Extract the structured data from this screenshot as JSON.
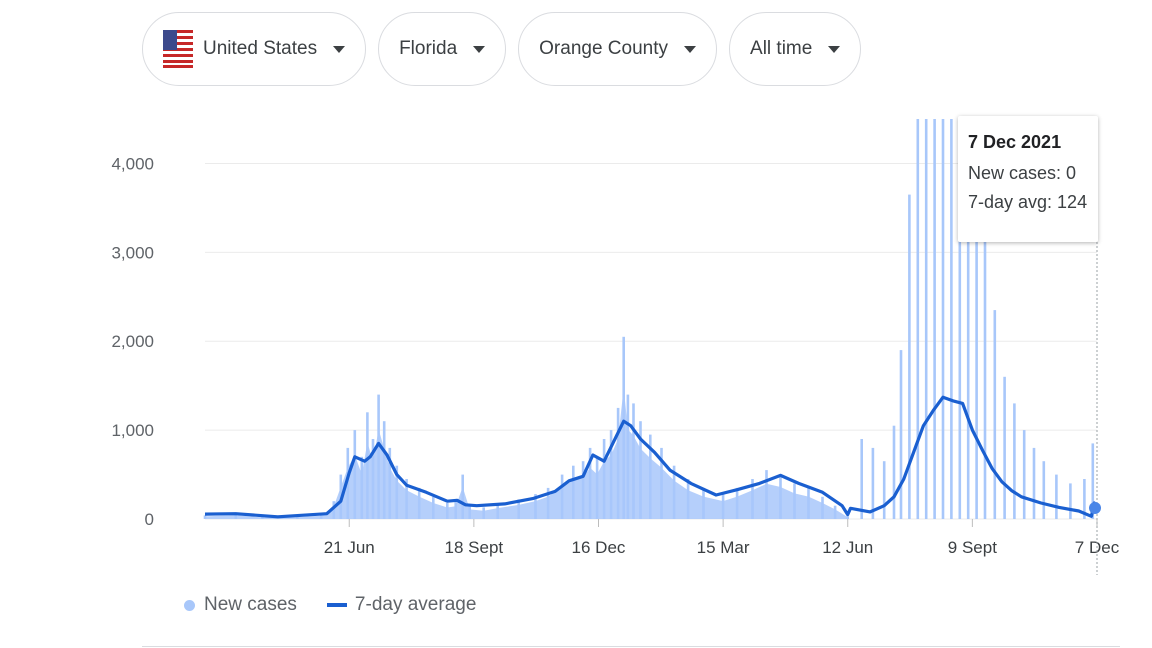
{
  "filters": {
    "country": "United States",
    "state": "Florida",
    "county": "Orange County",
    "range": "All time"
  },
  "tooltip": {
    "date": "7 Dec 2021",
    "new_cases": "New cases: 0",
    "avg": "7-day avg: 124"
  },
  "legend": {
    "new_cases": "New cases",
    "avg": "7-day average"
  },
  "colors": {
    "bars": "#a8c7fa",
    "line": "#1a5fd0",
    "grid": "#ebebeb"
  },
  "chart_data": {
    "type": "bar",
    "title": "",
    "xlabel": "",
    "ylabel": "",
    "ylim": [
      0,
      4500
    ],
    "yticks": [
      0,
      1000,
      2000,
      3000,
      4000
    ],
    "ytick_labels": [
      "0",
      "1,000",
      "2,000",
      "3,000",
      "4,000"
    ],
    "xtick_labels": [
      "21 Jun",
      "18 Sept",
      "16 Dec",
      "15 Mar",
      "12 Jun",
      "9 Sept",
      "7 Dec"
    ],
    "xtick_dates": [
      "2020-06-21",
      "2020-09-18",
      "2020-12-16",
      "2021-03-15",
      "2021-06-12",
      "2021-09-09",
      "2021-12-07"
    ],
    "x_start": "2020-03-10",
    "x_end": "2021-12-07",
    "grid": true,
    "legend_position": "bottom-left",
    "series": [
      {
        "name": "New cases",
        "type": "bar",
        "points": [
          [
            "2020-03-10",
            40
          ],
          [
            "2020-04-01",
            60
          ],
          [
            "2020-04-20",
            25
          ],
          [
            "2020-05-15",
            30
          ],
          [
            "2020-06-01",
            50
          ],
          [
            "2020-06-10",
            200
          ],
          [
            "2020-06-15",
            500
          ],
          [
            "2020-06-20",
            800
          ],
          [
            "2020-06-25",
            1000
          ],
          [
            "2020-06-30",
            700
          ],
          [
            "2020-07-04",
            1200
          ],
          [
            "2020-07-08",
            900
          ],
          [
            "2020-07-12",
            1400
          ],
          [
            "2020-07-16",
            1100
          ],
          [
            "2020-07-20",
            800
          ],
          [
            "2020-07-25",
            600
          ],
          [
            "2020-08-01",
            450
          ],
          [
            "2020-08-10",
            350
          ],
          [
            "2020-08-20",
            250
          ],
          [
            "2020-08-30",
            180
          ],
          [
            "2020-09-05",
            200
          ],
          [
            "2020-09-10",
            500
          ],
          [
            "2020-09-15",
            150
          ],
          [
            "2020-09-25",
            130
          ],
          [
            "2020-10-05",
            170
          ],
          [
            "2020-10-20",
            220
          ],
          [
            "2020-11-01",
            280
          ],
          [
            "2020-11-10",
            350
          ],
          [
            "2020-11-20",
            500
          ],
          [
            "2020-11-28",
            600
          ],
          [
            "2020-12-05",
            650
          ],
          [
            "2020-12-10",
            800
          ],
          [
            "2020-12-15",
            700
          ],
          [
            "2020-12-20",
            900
          ],
          [
            "2020-12-25",
            1000
          ],
          [
            "2020-12-30",
            1250
          ],
          [
            "2021-01-03",
            2050
          ],
          [
            "2021-01-06",
            1400
          ],
          [
            "2021-01-10",
            1300
          ],
          [
            "2021-01-15",
            1100
          ],
          [
            "2021-01-22",
            950
          ],
          [
            "2021-01-30",
            800
          ],
          [
            "2021-02-08",
            600
          ],
          [
            "2021-02-18",
            450
          ],
          [
            "2021-03-01",
            350
          ],
          [
            "2021-03-15",
            280
          ],
          [
            "2021-03-25",
            350
          ],
          [
            "2021-04-05",
            450
          ],
          [
            "2021-04-15",
            550
          ],
          [
            "2021-04-25",
            500
          ],
          [
            "2021-05-05",
            400
          ],
          [
            "2021-05-15",
            350
          ],
          [
            "2021-05-25",
            250
          ],
          [
            "2021-06-03",
            150
          ],
          [
            "2021-06-12",
            30
          ],
          [
            "2021-06-22",
            900
          ],
          [
            "2021-06-30",
            800
          ],
          [
            "2021-07-08",
            650
          ],
          [
            "2021-07-15",
            1050
          ],
          [
            "2021-07-20",
            1900
          ],
          [
            "2021-07-26",
            3650
          ],
          [
            "2021-08-01",
            4500
          ],
          [
            "2021-08-07",
            4500
          ],
          [
            "2021-08-13",
            4500
          ],
          [
            "2021-08-19",
            4500
          ],
          [
            "2021-08-25",
            4500
          ],
          [
            "2021-08-31",
            4500
          ],
          [
            "2021-09-06",
            4500
          ],
          [
            "2021-09-12",
            4000
          ],
          [
            "2021-09-18",
            3400
          ],
          [
            "2021-09-25",
            2350
          ],
          [
            "2021-10-02",
            1600
          ],
          [
            "2021-10-09",
            1300
          ],
          [
            "2021-10-16",
            1000
          ],
          [
            "2021-10-23",
            800
          ],
          [
            "2021-10-30",
            650
          ],
          [
            "2021-11-08",
            500
          ],
          [
            "2021-11-18",
            400
          ],
          [
            "2021-11-28",
            450
          ],
          [
            "2021-12-04",
            850
          ],
          [
            "2021-12-07",
            0
          ]
        ]
      },
      {
        "name": "7-day average",
        "type": "line",
        "points": [
          [
            "2020-03-10",
            55
          ],
          [
            "2020-04-01",
            60
          ],
          [
            "2020-05-01",
            25
          ],
          [
            "2020-06-05",
            60
          ],
          [
            "2020-06-15",
            200
          ],
          [
            "2020-06-21",
            520
          ],
          [
            "2020-06-25",
            700
          ],
          [
            "2020-07-02",
            650
          ],
          [
            "2020-07-06",
            700
          ],
          [
            "2020-07-12",
            850
          ],
          [
            "2020-07-18",
            720
          ],
          [
            "2020-07-25",
            500
          ],
          [
            "2020-08-01",
            380
          ],
          [
            "2020-08-15",
            300
          ],
          [
            "2020-08-30",
            200
          ],
          [
            "2020-09-06",
            210
          ],
          [
            "2020-09-12",
            160
          ],
          [
            "2020-09-20",
            150
          ],
          [
            "2020-10-10",
            170
          ],
          [
            "2020-10-30",
            230
          ],
          [
            "2020-11-15",
            310
          ],
          [
            "2020-11-25",
            430
          ],
          [
            "2020-12-05",
            480
          ],
          [
            "2020-12-12",
            720
          ],
          [
            "2020-12-20",
            650
          ],
          [
            "2021-01-03",
            1100
          ],
          [
            "2021-01-08",
            1050
          ],
          [
            "2021-01-15",
            900
          ],
          [
            "2021-01-25",
            750
          ],
          [
            "2021-02-05",
            550
          ],
          [
            "2021-02-20",
            400
          ],
          [
            "2021-03-10",
            270
          ],
          [
            "2021-03-25",
            330
          ],
          [
            "2021-04-10",
            400
          ],
          [
            "2021-04-25",
            490
          ],
          [
            "2021-05-08",
            400
          ],
          [
            "2021-05-25",
            300
          ],
          [
            "2021-06-08",
            150
          ],
          [
            "2021-06-12",
            50
          ],
          [
            "2021-06-14",
            120
          ],
          [
            "2021-06-28",
            80
          ],
          [
            "2021-07-08",
            150
          ],
          [
            "2021-07-15",
            250
          ],
          [
            "2021-07-22",
            450
          ],
          [
            "2021-07-29",
            750
          ],
          [
            "2021-08-05",
            1050
          ],
          [
            "2021-08-12",
            1220
          ],
          [
            "2021-08-19",
            1370
          ],
          [
            "2021-08-26",
            1330
          ],
          [
            "2021-09-02",
            1300
          ],
          [
            "2021-09-09",
            1000
          ],
          [
            "2021-09-16",
            780
          ],
          [
            "2021-09-23",
            570
          ],
          [
            "2021-09-30",
            420
          ],
          [
            "2021-10-07",
            320
          ],
          [
            "2021-10-14",
            250
          ],
          [
            "2021-10-28",
            180
          ],
          [
            "2021-11-10",
            130
          ],
          [
            "2021-11-24",
            90
          ],
          [
            "2021-12-03",
            30
          ],
          [
            "2021-12-05",
            180
          ],
          [
            "2021-12-07",
            124
          ]
        ]
      }
    ]
  }
}
